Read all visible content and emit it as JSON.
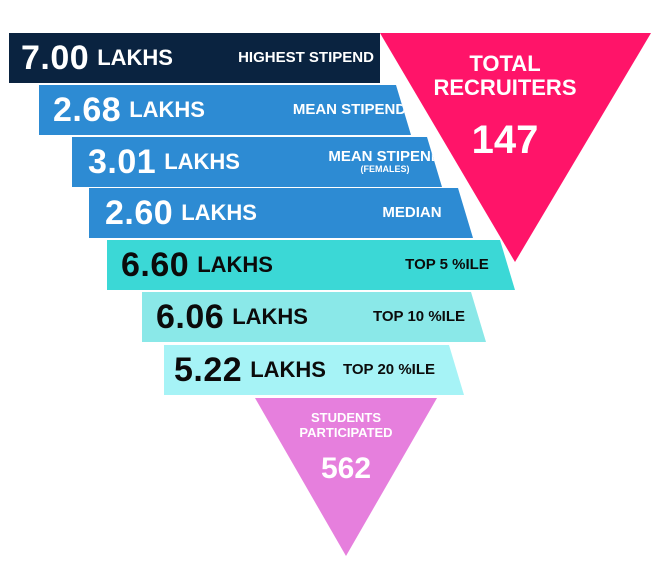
{
  "colors": {
    "recruiters_triangle": "#ff1469",
    "students_triangle": "#e67fdd",
    "band_1": "#0a2340",
    "band_2": "#2d8bd3",
    "band_3": "#2d8bd3",
    "band_4": "#2d8bd3",
    "band_5": "#3bd8d6",
    "band_6": "#8ae8e8",
    "band_7": "#a6f3f6"
  },
  "recruiters": {
    "label_line1": "TOTAL",
    "label_line2": "RECRUITERS",
    "value": "147"
  },
  "students": {
    "label_line1": "STUDENTS",
    "label_line2": "PARTICIPATED",
    "value": "562"
  },
  "bands": [
    {
      "value": "7.00",
      "unit": "LAKHS",
      "label": "HIGHEST STIPEND",
      "sublabel": ""
    },
    {
      "value": "2.68",
      "unit": "LAKHS",
      "label": "MEAN STIPEND",
      "sublabel": ""
    },
    {
      "value": "3.01",
      "unit": "LAKHS",
      "label": "MEAN STIPEND",
      "sublabel": "(FEMALES)"
    },
    {
      "value": "2.60",
      "unit": "LAKHS",
      "label": "MEDIAN",
      "sublabel": ""
    },
    {
      "value": "6.60",
      "unit": "LAKHS",
      "label": "TOP 5 %ILE",
      "sublabel": ""
    },
    {
      "value": "6.06",
      "unit": "LAKHS",
      "label": "TOP 10 %ILE",
      "sublabel": ""
    },
    {
      "value": "5.22",
      "unit": "LAKHS",
      "label": "TOP 20 %ILE",
      "sublabel": ""
    }
  ]
}
